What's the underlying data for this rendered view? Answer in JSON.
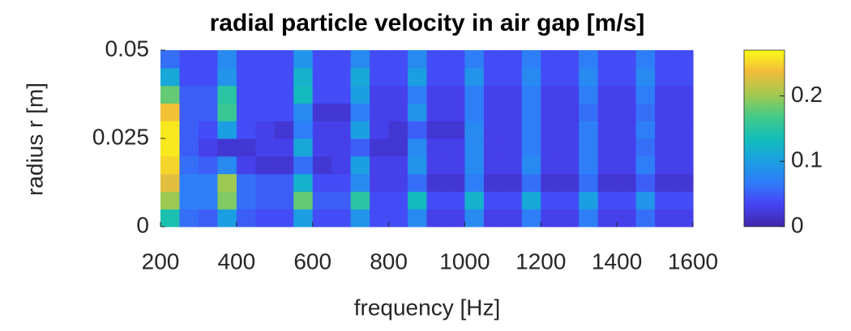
{
  "chart_data": {
    "type": "heatmap",
    "title": "radial particle velocity in air gap [m/s]",
    "xlabel": "frequency [Hz]",
    "ylabel": "radius r [m]",
    "xbins": [
      200,
      250,
      300,
      350,
      400,
      450,
      500,
      550,
      600,
      650,
      700,
      750,
      800,
      850,
      900,
      950,
      1000,
      1050,
      1100,
      1150,
      1200,
      1250,
      1300,
      1350,
      1400,
      1450,
      1500,
      1550,
      1600
    ],
    "ybins": [
      0,
      0.005,
      0.01,
      0.015,
      0.02,
      0.025,
      0.03,
      0.035,
      0.04,
      0.045,
      0.05
    ],
    "z": [
      [
        0.14,
        0.06,
        0.05,
        0.1,
        0.05,
        0.04,
        0.04,
        0.1,
        0.04,
        0.04,
        0.09,
        0.04,
        0.04,
        0.08,
        0.03,
        0.03,
        0.08,
        0.03,
        0.03,
        0.07,
        0.03,
        0.03,
        0.07,
        0.03,
        0.03,
        0.06,
        0.03,
        0.03
      ],
      [
        0.2,
        0.07,
        0.07,
        0.19,
        0.06,
        0.05,
        0.05,
        0.18,
        0.05,
        0.05,
        0.15,
        0.04,
        0.04,
        0.13,
        0.04,
        0.04,
        0.12,
        0.04,
        0.04,
        0.11,
        0.04,
        0.04,
        0.1,
        0.04,
        0.04,
        0.09,
        0.04,
        0.04
      ],
      [
        0.23,
        0.07,
        0.07,
        0.2,
        0.06,
        0.05,
        0.05,
        0.12,
        0.04,
        0.04,
        0.08,
        0.03,
        0.03,
        0.06,
        0.02,
        0.02,
        0.07,
        0.02,
        0.02,
        0.06,
        0.02,
        0.02,
        0.06,
        0.02,
        0.02,
        0.05,
        0.02,
        0.02
      ],
      [
        0.25,
        0.06,
        0.05,
        0.08,
        0.03,
        0.02,
        0.02,
        0.06,
        0.02,
        0.03,
        0.1,
        0.03,
        0.03,
        0.09,
        0.03,
        0.03,
        0.08,
        0.03,
        0.03,
        0.08,
        0.03,
        0.03,
        0.07,
        0.03,
        0.03,
        0.07,
        0.03,
        0.03
      ],
      [
        0.26,
        0.05,
        0.03,
        0.02,
        0.02,
        0.03,
        0.03,
        0.11,
        0.03,
        0.03,
        0.05,
        0.02,
        0.02,
        0.08,
        0.03,
        0.03,
        0.08,
        0.03,
        0.03,
        0.07,
        0.03,
        0.03,
        0.07,
        0.03,
        0.03,
        0.06,
        0.03,
        0.03
      ],
      [
        0.26,
        0.05,
        0.04,
        0.1,
        0.04,
        0.03,
        0.02,
        0.07,
        0.03,
        0.03,
        0.1,
        0.03,
        0.02,
        0.05,
        0.02,
        0.02,
        0.08,
        0.03,
        0.03,
        0.07,
        0.03,
        0.03,
        0.07,
        0.03,
        0.03,
        0.07,
        0.03,
        0.03
      ],
      [
        0.24,
        0.05,
        0.05,
        0.16,
        0.04,
        0.04,
        0.04,
        0.08,
        0.02,
        0.02,
        0.07,
        0.03,
        0.03,
        0.09,
        0.03,
        0.03,
        0.07,
        0.03,
        0.03,
        0.07,
        0.03,
        0.03,
        0.06,
        0.03,
        0.03,
        0.06,
        0.03,
        0.03
      ],
      [
        0.18,
        0.05,
        0.05,
        0.15,
        0.04,
        0.04,
        0.04,
        0.13,
        0.04,
        0.04,
        0.1,
        0.03,
        0.03,
        0.07,
        0.03,
        0.03,
        0.07,
        0.03,
        0.03,
        0.07,
        0.03,
        0.03,
        0.07,
        0.03,
        0.03,
        0.07,
        0.03,
        0.03
      ],
      [
        0.11,
        0.04,
        0.04,
        0.09,
        0.04,
        0.04,
        0.04,
        0.12,
        0.04,
        0.04,
        0.11,
        0.04,
        0.04,
        0.1,
        0.04,
        0.04,
        0.09,
        0.04,
        0.04,
        0.08,
        0.04,
        0.04,
        0.08,
        0.04,
        0.04,
        0.08,
        0.04,
        0.04
      ],
      [
        0.06,
        0.04,
        0.04,
        0.08,
        0.04,
        0.04,
        0.04,
        0.09,
        0.04,
        0.04,
        0.08,
        0.04,
        0.04,
        0.08,
        0.04,
        0.04,
        0.07,
        0.04,
        0.04,
        0.07,
        0.04,
        0.04,
        0.07,
        0.04,
        0.04,
        0.07,
        0.04,
        0.04
      ]
    ],
    "xlim": [
      200,
      1600
    ],
    "xticks": [
      200,
      400,
      600,
      800,
      1000,
      1200,
      1400,
      1600
    ],
    "ylim": [
      0,
      0.05
    ],
    "yticks": [
      0,
      0.025,
      0.05
    ],
    "colormap": "parula",
    "clim": [
      0,
      0.27
    ],
    "cticks": [
      0,
      0.1,
      0.2
    ]
  }
}
